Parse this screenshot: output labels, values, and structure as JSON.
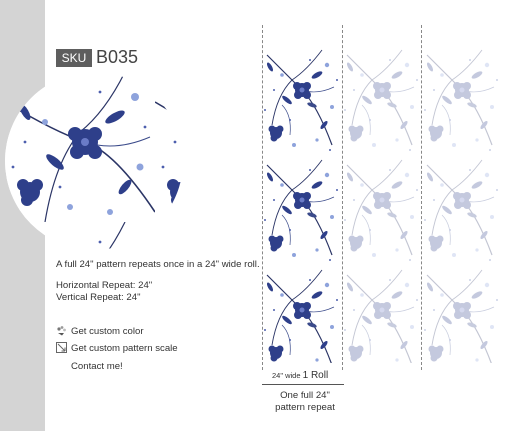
{
  "product": {
    "sku_label": "SKU",
    "sku_code": "B035"
  },
  "description": {
    "summary": "A full 24\" pattern repeats once in a 24\" wide roll.",
    "horizontal_repeat": "Horizontal Repeat: 24\"",
    "vertical_repeat": "Vertical Repeat: 24\""
  },
  "options": [
    {
      "label": "Get custom color",
      "icon": "palette-icon"
    },
    {
      "label": "Get custom pattern scale",
      "icon": "scale-icon"
    },
    {
      "label": "Contact me!",
      "icon": ""
    }
  ],
  "dimensions": {
    "width_small": "24\" wide",
    "roll_label": "1 Roll",
    "repeat_line1": "One full 24\"",
    "repeat_line2": "pattern repeat"
  },
  "colors": {
    "accent_blue": "#2e3f8a",
    "sku_bg": "#5e5e5e",
    "side_bar": "#d4d4d4"
  }
}
